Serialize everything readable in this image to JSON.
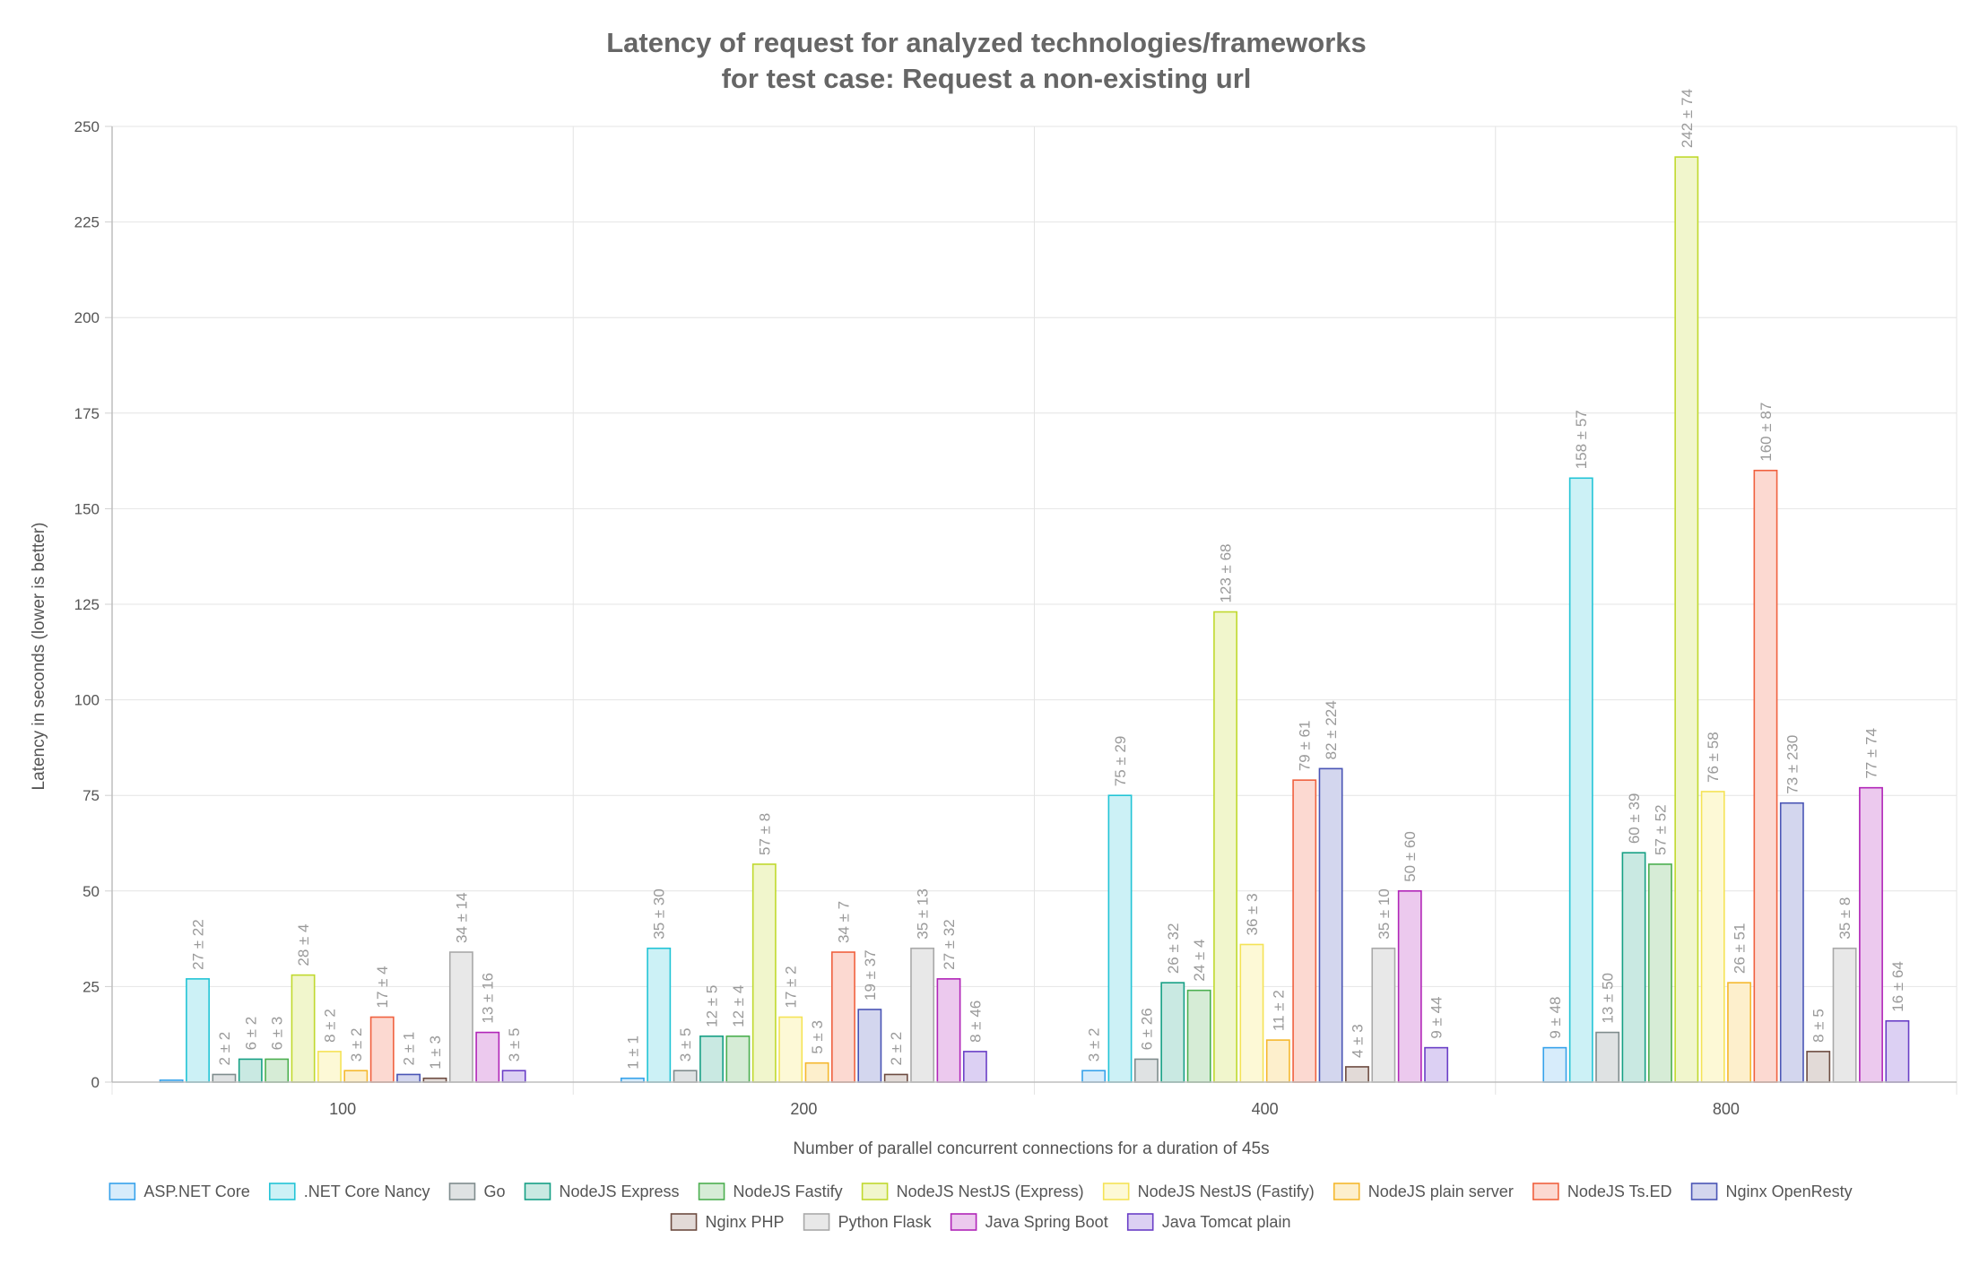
{
  "chart_data": {
    "type": "bar",
    "title": [
      "Latency of request for analyzed technologies/frameworks",
      "for test case: Request a non-existing url"
    ],
    "xlabel": "Number of parallel concurrent connections for a duration of 45s",
    "ylabel": "Latency in seconds (lower is better)",
    "ylim": [
      0,
      250
    ],
    "yticks": [
      0,
      25,
      50,
      75,
      100,
      125,
      150,
      175,
      200,
      225,
      250
    ],
    "categories": [
      "100",
      "200",
      "400",
      "800"
    ],
    "legend_position": "bottom",
    "grid": true,
    "series": [
      {
        "name": "ASP.NET Core",
        "stroke": "#36a2eb",
        "fill": "#d7ecfb",
        "values": [
          0.5,
          1,
          3,
          9
        ],
        "labels": [
          "",
          "1 ± 1",
          "3 ± 2",
          "9 ± 48"
        ]
      },
      {
        "name": ".NET Core Nancy",
        "stroke": "#22c4d6",
        "fill": "#ccf1f6",
        "values": [
          27,
          35,
          75,
          158
        ],
        "labels": [
          "27 ± 22",
          "35 ± 30",
          "75 ± 29",
          "158 ± 57"
        ]
      },
      {
        "name": "Go",
        "stroke": "#7f8c8d",
        "fill": "#dfe2e3",
        "values": [
          2,
          3,
          6,
          13
        ],
        "labels": [
          "2 ± 2",
          "3 ± 5",
          "6 ± 26",
          "13 ± 50"
        ]
      },
      {
        "name": "NodeJS Express",
        "stroke": "#16a085",
        "fill": "#c9e9e2",
        "values": [
          6,
          12,
          26,
          60
        ],
        "labels": [
          "6 ± 2",
          "12 ± 5",
          "26 ± 32",
          "60 ± 39"
        ]
      },
      {
        "name": "NodeJS Fastify",
        "stroke": "#4caf50",
        "fill": "#d6ecd6",
        "values": [
          6,
          12,
          24,
          57
        ],
        "labels": [
          "6 ± 3",
          "12 ± 4",
          "24 ± 4",
          "57 ± 52"
        ]
      },
      {
        "name": "NodeJS NestJS (Express)",
        "stroke": "#c0d92e",
        "fill": "#f1f6cc",
        "values": [
          28,
          57,
          123,
          242
        ],
        "labels": [
          "28 ± 4",
          "57 ± 8",
          "123 ± 68",
          "242 ± 74"
        ]
      },
      {
        "name": "NodeJS NestJS (Fastify)",
        "stroke": "#f5e356",
        "fill": "#fdf9d6",
        "values": [
          8,
          17,
          36,
          76
        ],
        "labels": [
          "8 ± 2",
          "17 ± 2",
          "36 ± 3",
          "76 ± 58"
        ]
      },
      {
        "name": "NodeJS plain server",
        "stroke": "#f5b82e",
        "fill": "#fdefcc",
        "values": [
          3,
          5,
          11,
          26
        ],
        "labels": [
          "3 ± 2",
          "5 ± 3",
          "11 ± 2",
          "26 ± 51"
        ]
      },
      {
        "name": "NodeJS Ts.ED",
        "stroke": "#f0613f",
        "fill": "#fcd9d1",
        "values": [
          17,
          34,
          79,
          160
        ],
        "labels": [
          "17 ± 4",
          "34 ± 7",
          "79 ± 61",
          "160 ± 87"
        ]
      },
      {
        "name": "Nginx OpenResty",
        "stroke": "#4a55b5",
        "fill": "#d3d6ee",
        "values": [
          2,
          19,
          82,
          73
        ],
        "labels": [
          "2 ± 1",
          "19 ± 37",
          "82 ± 224",
          "73 ± 230"
        ]
      },
      {
        "name": "Nginx PHP",
        "stroke": "#6d4c41",
        "fill": "#e2dad7",
        "values": [
          1,
          2,
          4,
          8
        ],
        "labels": [
          "1 ± 3",
          "2 ± 2",
          "4 ± 3",
          "8 ± 5"
        ]
      },
      {
        "name": "Python Flask",
        "stroke": "#a9a9a9",
        "fill": "#e8e8e8",
        "values": [
          34,
          35,
          35,
          35
        ],
        "labels": [
          "34 ± 14",
          "35 ± 13",
          "35 ± 10",
          "35 ± 8"
        ]
      },
      {
        "name": "Java Spring Boot",
        "stroke": "#b125b8",
        "fill": "#ecc9ee",
        "values": [
          13,
          27,
          50,
          77
        ],
        "labels": [
          "13 ± 16",
          "27 ± 32",
          "50 ± 60",
          "77 ± 74"
        ]
      },
      {
        "name": "Java Tomcat plain",
        "stroke": "#6a3fc7",
        "fill": "#dcd0f3",
        "values": [
          3,
          8,
          9,
          16
        ],
        "labels": [
          "3 ± 5",
          "8 ± 46",
          "9 ± 44",
          "16 ± 64"
        ]
      }
    ]
  }
}
